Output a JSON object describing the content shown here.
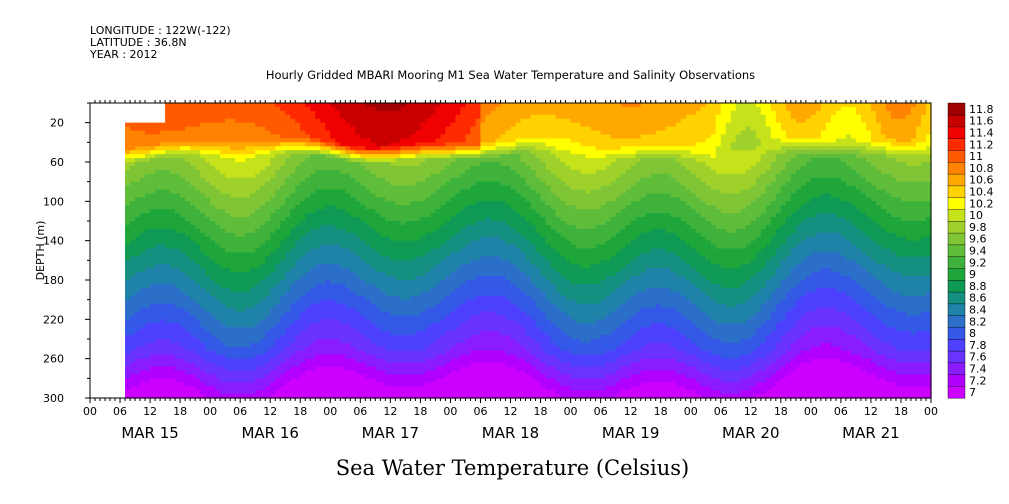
{
  "header": {
    "longitude": "LONGITUDE : 122W(-122)",
    "latitude": "LATITUDE : 36.8N",
    "year": "YEAR : 2012"
  },
  "chart_data": {
    "type": "heatmap",
    "title": "Hourly Gridded MBARI Mooring M1 Sea Water Temperature and Salinity Observations",
    "xlabel": "Sea Water Temperature (Celsius)",
    "ylabel": "DEPTH (m)",
    "x_hour_ticks": [
      "00",
      "06",
      "12",
      "18",
      "00",
      "06",
      "12",
      "18",
      "00",
      "06",
      "12",
      "18",
      "00",
      "06",
      "12",
      "18",
      "00",
      "06",
      "12",
      "18",
      "00",
      "06",
      "12",
      "18",
      "00",
      "06",
      "12",
      "18",
      "00"
    ],
    "x_day_labels": [
      "MAR 15",
      "MAR 16",
      "MAR 17",
      "MAR 18",
      "MAR 19",
      "MAR 20",
      "MAR 21"
    ],
    "xlim_hours_since_mar15_00": [
      0,
      168
    ],
    "y_tick_labels": [
      20,
      60,
      100,
      140,
      180,
      220,
      260,
      300
    ],
    "ylim": [
      300,
      0
    ],
    "colorbar_levels": [
      7,
      7.2,
      7.4,
      7.6,
      7.8,
      8,
      8.2,
      8.4,
      8.6,
      8.8,
      9,
      9.2,
      9.4,
      9.6,
      9.8,
      10,
      10.2,
      10.4,
      10.6,
      10.8,
      11,
      11.2,
      11.4,
      11.6,
      11.8
    ],
    "colorbar_colors": [
      "#cc00ff",
      "#b200ff",
      "#8a1cff",
      "#6a33ff",
      "#4d40ff",
      "#3359e6",
      "#2b6fc8",
      "#1f82a8",
      "#158f80",
      "#0e9a55",
      "#1fa63a",
      "#3eb23b",
      "#5fbd3a",
      "#7fc535",
      "#a0d02a",
      "#c6e21a",
      "#ffff00",
      "#ffd200",
      "#ffa800",
      "#ff8200",
      "#ff5a00",
      "#ff2a00",
      "#f00000",
      "#c80000",
      "#a00000"
    ],
    "profile_summary": {
      "data_start_hour": 7,
      "data_end_hour": 168,
      "surface_layer_temp_range": [
        10.4,
        11.8
      ],
      "thermocline_depth_m": [
        40,
        60
      ],
      "mid_depth_temp_range": [
        8.6,
        9.6
      ],
      "bottom_temp_range": [
        7.0,
        7.6
      ]
    }
  }
}
